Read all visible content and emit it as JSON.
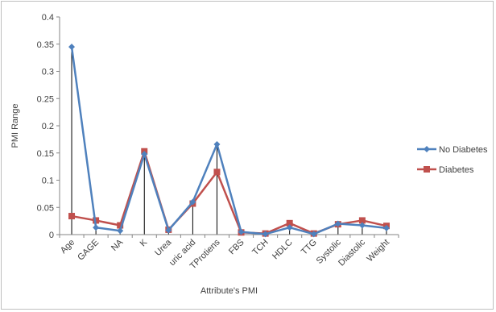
{
  "chart_data": {
    "type": "line",
    "title": "",
    "xlabel": "Attribute's PMI",
    "ylabel": "PMI Range",
    "ylim": [
      0,
      0.4
    ],
    "ytick_step": 0.05,
    "yticks": [
      "0",
      "0.05",
      "0.1",
      "0.15",
      "0.2",
      "0.25",
      "0.3",
      "0.35",
      "0.4"
    ],
    "grid": false,
    "drop_lines": true,
    "legend_position": "right",
    "categories": [
      "Age",
      "GAGE",
      "NA",
      "K",
      "Urea",
      "uric acid",
      "TProtiens",
      "FBS",
      "TCH",
      "HDLC",
      "TTG",
      "Systolic",
      "Diastolic",
      "Weight"
    ],
    "series": [
      {
        "name": "No Diabetes",
        "color": "#4f81bd",
        "marker": "diamond",
        "values": [
          0.345,
          0.013,
          0.007,
          0.148,
          0.008,
          0.06,
          0.166,
          0.005,
          0.001,
          0.013,
          0.001,
          0.02,
          0.017,
          0.012
        ]
      },
      {
        "name": "Diabetes",
        "color": "#c0504d",
        "marker": "square",
        "values": [
          0.034,
          0.026,
          0.017,
          0.153,
          0.009,
          0.057,
          0.115,
          0.004,
          0.002,
          0.021,
          0.002,
          0.019,
          0.026,
          0.016
        ]
      }
    ]
  }
}
